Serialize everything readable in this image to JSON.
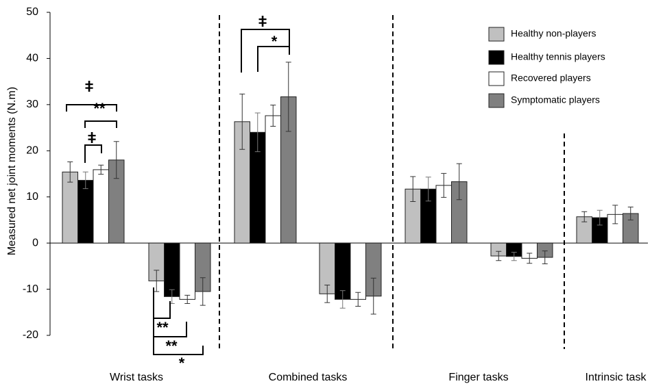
{
  "chart_data": {
    "type": "bar",
    "y_label": "Measured net joint moments (N.m)",
    "categories": [
      null,
      null,
      null,
      null,
      null,
      null,
      null
    ],
    "group_labels": [
      "Wrist tasks",
      "Combined tasks",
      "Finger tasks",
      "Intrinsic task"
    ],
    "series": [
      {
        "name": "Healthy non-players",
        "color": "#c0c0c0",
        "values": [
          15.4,
          -8.2,
          26.3,
          -11.0,
          11.7,
          -2.8,
          5.7
        ],
        "errors": [
          2.2,
          2.3,
          6.0,
          1.9,
          2.7,
          1.0,
          1.1
        ]
      },
      {
        "name": "Healthy tennis players",
        "color": "#000000",
        "values": [
          13.6,
          -11.6,
          24.0,
          -12.2,
          11.7,
          -2.9,
          5.5
        ],
        "errors": [
          1.8,
          1.5,
          4.2,
          1.9,
          2.6,
          0.9,
          1.6
        ]
      },
      {
        "name": "Recovered players",
        "color": "#ffffff",
        "values": [
          15.9,
          -12.2,
          27.6,
          -12.2,
          12.5,
          -3.3,
          6.2
        ],
        "errors": [
          1.0,
          0.9,
          2.3,
          1.5,
          2.6,
          1.1,
          2.0
        ]
      },
      {
        "name": "Symptomatic players",
        "color": "#808080",
        "values": [
          18.0,
          -10.5,
          31.7,
          -11.5,
          13.3,
          -3.1,
          6.4
        ],
        "errors": [
          4.0,
          3.0,
          7.5,
          3.9,
          3.9,
          1.4,
          1.4
        ]
      }
    ],
    "annotations": [
      "ǂ",
      "**",
      "ǂ",
      "**",
      "**",
      "*",
      "ǂ",
      "*"
    ],
    "ylim": [
      -20,
      50
    ],
    "yticks": [
      -20,
      -10,
      0,
      10,
      20,
      30,
      40,
      50
    ],
    "legend": "top-right"
  }
}
